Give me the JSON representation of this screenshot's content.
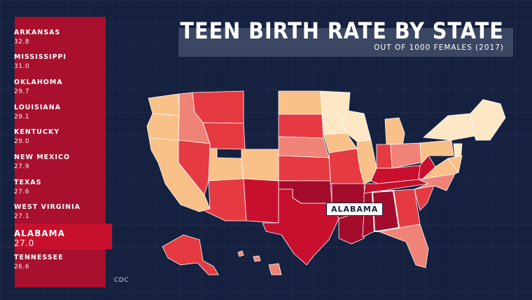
{
  "title": "TEEN BIRTH RATE BY STATE",
  "subtitle": "OUT OF 1000 FEMALES (2017)",
  "source": "CDC",
  "callout": "ALABAMA",
  "colors": {
    "background": "#15213f",
    "panel": "#a8102e",
    "highlight": "#c8102e",
    "scale": [
      "#fde7c4",
      "#f9c088",
      "#f08378",
      "#e53a42",
      "#c8102e",
      "#a30d2b"
    ]
  },
  "chart_data": {
    "type": "table",
    "ranking": [
      {
        "state": "ARKANSAS",
        "rate": "32.8"
      },
      {
        "state": "MISSISSIPPI",
        "rate": "31.0"
      },
      {
        "state": "OKLAHOMA",
        "rate": "29.7"
      },
      {
        "state": "LOUISIANA",
        "rate": "29.1"
      },
      {
        "state": "KENTUCKY",
        "rate": "29.0"
      },
      {
        "state": "NEW MEXICO",
        "rate": "27.9"
      },
      {
        "state": "TEXAS",
        "rate": "27.6"
      },
      {
        "state": "WEST VIRGINIA",
        "rate": "27.1"
      },
      {
        "state": "ALABAMA",
        "rate": "27.0"
      },
      {
        "state": "TENNESSEE",
        "rate": "26.6"
      }
    ],
    "highlighted": "ALABAMA"
  }
}
